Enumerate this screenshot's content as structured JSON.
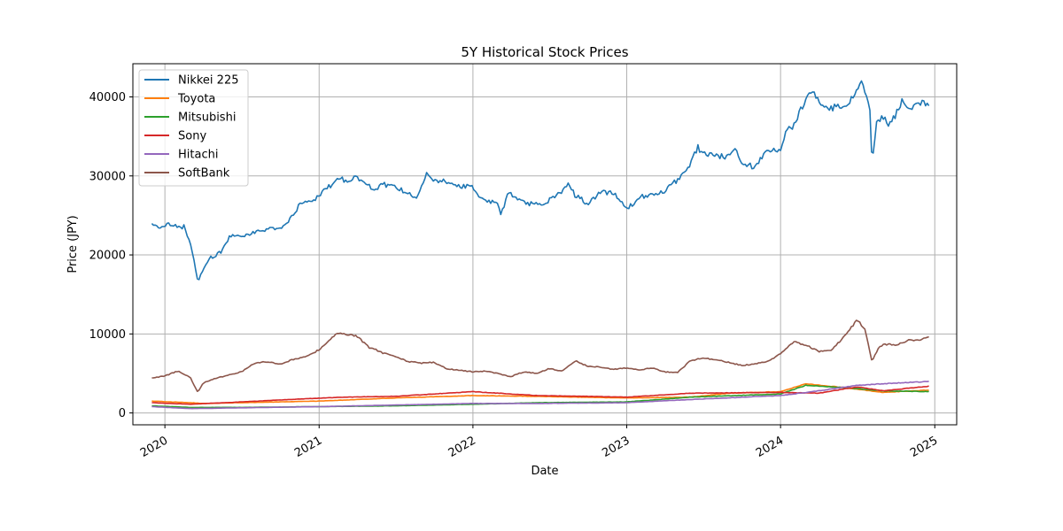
{
  "chart_data": {
    "type": "line",
    "title": "5Y Historical Stock Prices",
    "xlabel": "Date",
    "ylabel": "Price (JPY)",
    "xlim": [
      "2019-10-17",
      "2025-02-22"
    ],
    "ylim": [
      -1500,
      44200
    ],
    "x_ticks": [
      "2020-01-01",
      "2021-01-01",
      "2022-01-01",
      "2023-01-01",
      "2024-01-01",
      "2025-01-01"
    ],
    "x_tick_labels": [
      "2020",
      "2021",
      "2022",
      "2023",
      "2024",
      "2025"
    ],
    "y_ticks": [
      0,
      10000,
      20000,
      30000,
      40000
    ],
    "y_tick_labels": [
      "0",
      "10000",
      "20000",
      "30000",
      "40000"
    ],
    "grid": true,
    "legend_position": "top-left",
    "series": [
      {
        "name": "Nikkei 225",
        "color": "#1f77b4",
        "x": [
          "2019-12-01",
          "2019-12-15",
          "2020-01-01",
          "2020-01-15",
          "2020-02-01",
          "2020-02-15",
          "2020-03-01",
          "2020-03-10",
          "2020-03-19",
          "2020-04-01",
          "2020-04-15",
          "2020-05-01",
          "2020-05-15",
          "2020-06-01",
          "2020-06-15",
          "2020-07-01",
          "2020-08-01",
          "2020-09-01",
          "2020-10-01",
          "2020-11-01",
          "2020-11-15",
          "2020-12-01",
          "2020-12-15",
          "2021-01-01",
          "2021-01-15",
          "2021-02-01",
          "2021-02-15",
          "2021-03-01",
          "2021-03-15",
          "2021-04-01",
          "2021-05-01",
          "2021-05-15",
          "2021-06-01",
          "2021-07-01",
          "2021-08-01",
          "2021-08-20",
          "2021-09-01",
          "2021-09-14",
          "2021-10-01",
          "2021-11-01",
          "2021-12-01",
          "2022-01-01",
          "2022-01-15",
          "2022-02-01",
          "2022-03-01",
          "2022-03-09",
          "2022-03-25",
          "2022-04-15",
          "2022-05-15",
          "2022-06-15",
          "2022-07-01",
          "2022-08-01",
          "2022-08-17",
          "2022-09-01",
          "2022-10-01",
          "2022-11-01",
          "2022-12-01",
          "2023-01-01",
          "2023-01-15",
          "2023-02-01",
          "2023-03-01",
          "2023-04-01",
          "2023-05-01",
          "2023-06-01",
          "2023-06-19",
          "2023-07-01",
          "2023-08-01",
          "2023-09-01",
          "2023-09-15",
          "2023-10-01",
          "2023-11-01",
          "2023-12-01",
          "2024-01-01",
          "2024-01-15",
          "2024-02-01",
          "2024-02-15",
          "2024-03-01",
          "2024-03-20",
          "2024-04-01",
          "2024-04-15",
          "2024-05-01",
          "2024-06-01",
          "2024-07-01",
          "2024-07-11",
          "2024-08-01",
          "2024-08-05",
          "2024-08-15",
          "2024-09-01",
          "2024-09-15",
          "2024-10-01",
          "2024-10-15",
          "2024-11-01",
          "2024-12-01",
          "2024-12-20"
        ],
        "values": [
          23900,
          23600,
          23700,
          24000,
          23400,
          23600,
          21500,
          19500,
          16600,
          18000,
          19500,
          20000,
          20500,
          22200,
          22500,
          22300,
          22800,
          23200,
          23400,
          25000,
          26300,
          26700,
          27000,
          27400,
          28500,
          28800,
          30000,
          29400,
          29600,
          29800,
          28700,
          28000,
          29000,
          28500,
          27800,
          27000,
          28900,
          30500,
          29500,
          29200,
          28700,
          28600,
          27500,
          27000,
          26500,
          25000,
          28000,
          27000,
          26500,
          26200,
          27000,
          28000,
          29000,
          27500,
          26500,
          27900,
          27900,
          26000,
          26300,
          27400,
          27500,
          28000,
          29500,
          31500,
          33600,
          32800,
          32500,
          32500,
          33500,
          31800,
          31000,
          33400,
          33400,
          35800,
          36200,
          38000,
          39800,
          40800,
          39500,
          38500,
          38600,
          38800,
          40700,
          42200,
          38000,
          31500,
          36500,
          37500,
          36500,
          37800,
          39500,
          38500,
          39400,
          39000
        ]
      },
      {
        "name": "Toyota",
        "color": "#ff7f0e",
        "x": [
          "2019-12-01",
          "2020-03-01",
          "2020-04-01",
          "2020-07-01",
          "2021-01-01",
          "2021-07-01",
          "2022-01-01",
          "2022-06-01",
          "2023-01-01",
          "2023-06-01",
          "2023-09-01",
          "2024-01-01",
          "2024-03-01",
          "2024-06-01",
          "2024-09-01",
          "2024-12-20"
        ],
        "values": [
          1500,
          1300,
          1200,
          1300,
          1500,
          1900,
          2200,
          2100,
          1900,
          2000,
          2500,
          2700,
          3700,
          3200,
          2600,
          2900
        ]
      },
      {
        "name": "Mitsubishi",
        "color": "#2ca02c",
        "x": [
          "2019-12-01",
          "2020-03-01",
          "2020-07-01",
          "2021-01-01",
          "2021-07-01",
          "2022-01-01",
          "2022-06-01",
          "2023-01-01",
          "2023-06-01",
          "2024-01-01",
          "2024-03-01",
          "2024-06-01",
          "2024-09-01",
          "2024-12-20"
        ],
        "values": [
          900,
          700,
          700,
          800,
          900,
          1100,
          1300,
          1400,
          2000,
          2400,
          3500,
          3200,
          2800,
          2700
        ]
      },
      {
        "name": "Sony",
        "color": "#d62728",
        "x": [
          "2019-12-01",
          "2020-03-01",
          "2020-07-01",
          "2020-12-01",
          "2021-03-01",
          "2021-07-01",
          "2021-10-01",
          "2022-01-01",
          "2022-06-01",
          "2022-10-01",
          "2023-01-01",
          "2023-06-01",
          "2024-01-01",
          "2024-04-01",
          "2024-07-01",
          "2024-09-01",
          "2024-12-20"
        ],
        "values": [
          1300,
          1100,
          1400,
          1800,
          2000,
          2100,
          2400,
          2700,
          2200,
          2100,
          2000,
          2500,
          2600,
          2500,
          3300,
          2800,
          3400
        ]
      },
      {
        "name": "Hitachi",
        "color": "#9467bd",
        "x": [
          "2019-12-01",
          "2020-03-01",
          "2020-07-01",
          "2021-01-01",
          "2021-07-01",
          "2022-01-01",
          "2022-06-01",
          "2023-01-01",
          "2023-06-01",
          "2024-01-01",
          "2024-04-01",
          "2024-07-01",
          "2024-09-01",
          "2024-12-20"
        ],
        "values": [
          800,
          550,
          650,
          800,
          1000,
          1200,
          1200,
          1300,
          1700,
          2200,
          2800,
          3500,
          3700,
          4000
        ]
      },
      {
        "name": "SoftBank",
        "color": "#8c564b",
        "x": [
          "2019-12-01",
          "2020-01-01",
          "2020-02-01",
          "2020-03-01",
          "2020-03-19",
          "2020-04-01",
          "2020-05-01",
          "2020-06-01",
          "2020-07-01",
          "2020-08-01",
          "2020-09-01",
          "2020-10-01",
          "2020-11-01",
          "2020-12-01",
          "2021-01-01",
          "2021-02-01",
          "2021-02-15",
          "2021-03-01",
          "2021-04-01",
          "2021-05-01",
          "2021-05-15",
          "2021-06-01",
          "2021-07-01",
          "2021-08-01",
          "2021-09-01",
          "2021-10-01",
          "2021-11-01",
          "2021-12-01",
          "2022-01-01",
          "2022-02-01",
          "2022-03-01",
          "2022-04-01",
          "2022-05-01",
          "2022-06-01",
          "2022-07-01",
          "2022-08-01",
          "2022-09-01",
          "2022-10-01",
          "2022-11-01",
          "2022-12-01",
          "2023-01-01",
          "2023-02-01",
          "2023-03-01",
          "2023-04-01",
          "2023-05-01",
          "2023-06-01",
          "2023-07-01",
          "2023-08-01",
          "2023-09-01",
          "2023-10-01",
          "2023-11-01",
          "2023-12-01",
          "2024-01-01",
          "2024-02-01",
          "2024-03-01",
          "2024-04-01",
          "2024-05-01",
          "2024-06-01",
          "2024-07-01",
          "2024-07-20",
          "2024-08-05",
          "2024-08-20",
          "2024-09-01",
          "2024-10-01",
          "2024-11-01",
          "2024-12-01",
          "2024-12-20"
        ],
        "values": [
          4400,
          4700,
          5300,
          4500,
          2600,
          3800,
          4400,
          4800,
          5200,
          6300,
          6500,
          6200,
          6800,
          7100,
          8000,
          9500,
          10200,
          10000,
          9700,
          8200,
          8000,
          7600,
          7200,
          6500,
          6300,
          6400,
          5600,
          5400,
          5200,
          5300,
          5000,
          4600,
          5200,
          5000,
          5600,
          5300,
          6600,
          5900,
          5800,
          5500,
          5700,
          5400,
          5700,
          5200,
          5100,
          6600,
          7000,
          6700,
          6400,
          6000,
          6200,
          6500,
          7500,
          9000,
          8600,
          7800,
          8000,
          9700,
          11800,
          10500,
          6500,
          8200,
          8700,
          8600,
          9200,
          9300,
          9700
        ]
      }
    ]
  }
}
